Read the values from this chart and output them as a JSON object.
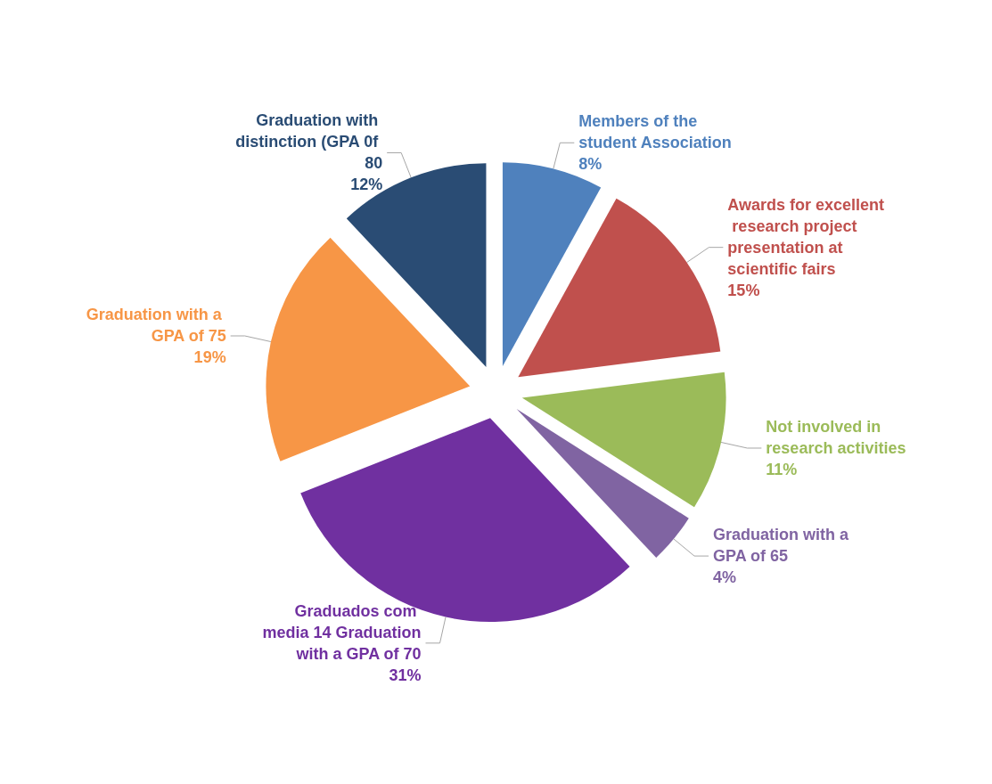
{
  "chart_data": {
    "type": "pie",
    "categories": [
      "Members of the student Association",
      "Awards for excellent research project presentation at scientific fairs",
      "Not involved in research activities",
      "Graduation with a GPA of 65",
      "Graduados com media 14 Graduation with a GPA of 70",
      "Graduation with a GPA of 75",
      "Graduation with distinction (GPA 0f 80"
    ],
    "values": [
      8,
      15,
      11,
      4,
      31,
      19,
      12
    ],
    "value_labels": [
      "8%",
      "15%",
      "11%",
      "4%",
      "31%",
      "19%",
      "12%"
    ],
    "colors": [
      "#4f81bd",
      "#c0504d",
      "#9bbb59",
      "#8064a2",
      "#7030a0",
      "#f79646",
      "#2a4c74"
    ],
    "legend": false
  }
}
